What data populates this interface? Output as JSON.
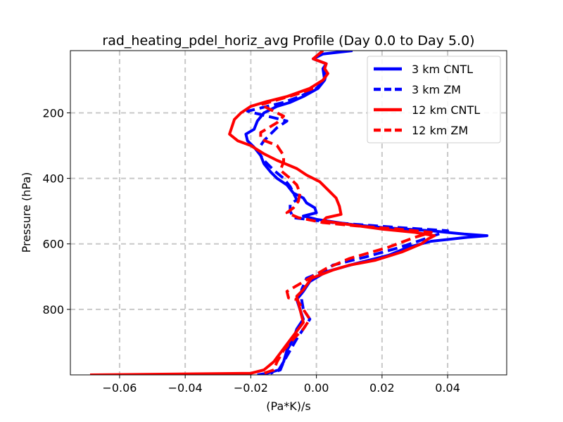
{
  "chart_data": {
    "type": "line",
    "title": "rad_heating_pdel_horiz_avg Profile (Day 0.0 to Day 5.0)",
    "xlabel": "(Pa*K)/s",
    "ylabel": "Pressure (hPa)",
    "xlim": [
      -0.075,
      0.058
    ],
    "ylim": [
      1000,
      10
    ],
    "y_inverted": true,
    "grid": true,
    "legend_position": "upper-right",
    "xticks": [
      -0.06,
      -0.04,
      -0.02,
      0.0,
      0.02,
      0.04
    ],
    "xtick_labels": [
      "−0.06",
      "−0.04",
      "−0.02",
      "0.00",
      "0.02",
      "0.04"
    ],
    "yticks": [
      200,
      400,
      600,
      800
    ],
    "ytick_labels": [
      "200",
      "400",
      "600",
      "800"
    ],
    "series": [
      {
        "name": "3 km CNTL",
        "color": "#0000ff",
        "style": "solid",
        "points": [
          [
            0.011,
            10
          ],
          [
            0.002,
            20
          ],
          [
            -0.001,
            35
          ],
          [
            0.003,
            50
          ],
          [
            0.002,
            65
          ],
          [
            0.003,
            80
          ],
          [
            0.0025,
            100
          ],
          [
            0.0005,
            125
          ],
          [
            -0.004,
            150
          ],
          [
            -0.008,
            168
          ],
          [
            -0.012,
            180
          ],
          [
            -0.016,
            200
          ],
          [
            -0.018,
            225
          ],
          [
            -0.019,
            250
          ],
          [
            -0.0215,
            265
          ],
          [
            -0.021,
            285
          ],
          [
            -0.019,
            305
          ],
          [
            -0.017,
            330
          ],
          [
            -0.016,
            355
          ],
          [
            -0.014,
            380
          ],
          [
            -0.012,
            400
          ],
          [
            -0.009,
            420
          ],
          [
            -0.007,
            445
          ],
          [
            -0.004,
            460
          ],
          [
            -0.003,
            475
          ],
          [
            -0.0005,
            490
          ],
          [
            0.0,
            505
          ],
          [
            -0.004,
            515
          ],
          [
            0.0,
            525
          ],
          [
            0.01,
            540
          ],
          [
            0.02,
            550
          ],
          [
            0.035,
            560
          ],
          [
            0.045,
            570
          ],
          [
            0.052,
            575
          ],
          [
            0.046,
            580
          ],
          [
            0.035,
            592
          ],
          [
            0.028,
            610
          ],
          [
            0.022,
            635
          ],
          [
            0.012,
            660
          ],
          [
            0.003,
            685
          ],
          [
            -0.002,
            715
          ],
          [
            -0.004,
            745
          ],
          [
            -0.006,
            770
          ],
          [
            -0.005,
            800
          ],
          [
            -0.004,
            830
          ],
          [
            -0.006,
            860
          ],
          [
            -0.007,
            890
          ],
          [
            -0.009,
            925
          ],
          [
            -0.01,
            960
          ],
          [
            -0.0115,
            985
          ],
          [
            -0.015,
            995
          ],
          [
            -0.018,
            1000
          ]
        ]
      },
      {
        "name": "3 km ZM",
        "color": "#0000ff",
        "style": "dashed",
        "points": [
          [
            0.002,
            65
          ],
          [
            0.0025,
            100
          ],
          [
            0.0,
            125
          ],
          [
            -0.005,
            150
          ],
          [
            -0.01,
            168
          ],
          [
            -0.021,
            195
          ],
          [
            -0.017,
            205
          ],
          [
            -0.009,
            225
          ],
          [
            -0.012,
            245
          ],
          [
            -0.016,
            285
          ],
          [
            -0.018,
            315
          ],
          [
            -0.016,
            345
          ],
          [
            -0.013,
            375
          ],
          [
            -0.01,
            400
          ],
          [
            -0.008,
            425
          ],
          [
            -0.007,
            445
          ],
          [
            -0.006,
            465
          ],
          [
            -0.008,
            480
          ],
          [
            -0.008,
            500
          ],
          [
            -0.007,
            520
          ],
          [
            0.005,
            535
          ],
          [
            0.025,
            550
          ],
          [
            0.04,
            560
          ],
          [
            0.033,
            585
          ],
          [
            0.025,
            612
          ],
          [
            0.015,
            640
          ],
          [
            0.005,
            665
          ],
          [
            0.003,
            680
          ],
          [
            -0.003,
            705
          ],
          [
            -0.0045,
            740
          ],
          [
            -0.0045,
            770
          ],
          [
            -0.004,
            800
          ],
          [
            -0.002,
            830
          ],
          [
            -0.004,
            860
          ],
          [
            -0.006,
            890
          ],
          [
            -0.008,
            925
          ],
          [
            -0.01,
            960
          ],
          [
            -0.011,
            985
          ],
          [
            -0.014,
            995
          ]
        ]
      },
      {
        "name": "12 km CNTL",
        "color": "#ff0000",
        "style": "solid",
        "points": [
          [
            0.002,
            10
          ],
          [
            -0.001,
            35
          ],
          [
            0.003,
            50
          ],
          [
            0.0025,
            65
          ],
          [
            0.0035,
            80
          ],
          [
            0.002,
            100
          ],
          [
            -0.002,
            125
          ],
          [
            -0.009,
            150
          ],
          [
            -0.015,
            165
          ],
          [
            -0.02,
            180
          ],
          [
            -0.023,
            200
          ],
          [
            -0.025,
            220
          ],
          [
            -0.0265,
            265
          ],
          [
            -0.024,
            285
          ],
          [
            -0.02,
            300
          ],
          [
            -0.016,
            325
          ],
          [
            -0.012,
            345
          ],
          [
            -0.006,
            370
          ],
          [
            -0.003,
            390
          ],
          [
            0.001,
            410
          ],
          [
            0.004,
            440
          ],
          [
            0.006,
            460
          ],
          [
            0.007,
            485
          ],
          [
            0.0075,
            510
          ],
          [
            0.003,
            520
          ],
          [
            0.002,
            530
          ],
          [
            0.02,
            555
          ],
          [
            0.03,
            565
          ],
          [
            0.036,
            575
          ],
          [
            0.034,
            585
          ],
          [
            0.032,
            600
          ],
          [
            0.026,
            625
          ],
          [
            0.018,
            650
          ],
          [
            0.01,
            665
          ],
          [
            0.005,
            680
          ],
          [
            -0.0015,
            705
          ],
          [
            -0.004,
            740
          ],
          [
            -0.006,
            760
          ],
          [
            -0.005,
            800
          ],
          [
            -0.004,
            840
          ],
          [
            -0.007,
            880
          ],
          [
            -0.01,
            920
          ],
          [
            -0.013,
            960
          ],
          [
            -0.016,
            985
          ],
          [
            -0.02,
            995
          ],
          [
            -0.069,
            1000
          ]
        ]
      },
      {
        "name": "12 km ZM",
        "color": "#ff0000",
        "style": "dashed",
        "points": [
          [
            -0.001,
            125
          ],
          [
            -0.005,
            140
          ],
          [
            -0.01,
            155
          ],
          [
            -0.017,
            175
          ],
          [
            -0.015,
            185
          ],
          [
            -0.01,
            210
          ],
          [
            -0.012,
            230
          ],
          [
            -0.017,
            260
          ],
          [
            -0.017,
            280
          ],
          [
            -0.012,
            300
          ],
          [
            -0.01,
            330
          ],
          [
            -0.01,
            350
          ],
          [
            -0.011,
            375
          ],
          [
            -0.008,
            400
          ],
          [
            -0.006,
            420
          ],
          [
            -0.005,
            445
          ],
          [
            -0.0055,
            470
          ],
          [
            -0.007,
            490
          ],
          [
            -0.009,
            505
          ],
          [
            -0.0055,
            520
          ],
          [
            0.002,
            535
          ],
          [
            0.012,
            545
          ],
          [
            0.025,
            555
          ],
          [
            0.035,
            565
          ],
          [
            0.03,
            580
          ],
          [
            0.022,
            610
          ],
          [
            0.01,
            645
          ],
          [
            0.003,
            675
          ],
          [
            -0.003,
            710
          ],
          [
            -0.009,
            745
          ],
          [
            -0.0085,
            765
          ],
          [
            -0.006,
            770
          ],
          [
            -0.004,
            800
          ],
          [
            -0.002,
            830
          ],
          [
            -0.004,
            860
          ],
          [
            -0.007,
            890
          ],
          [
            -0.01,
            925
          ],
          [
            -0.012,
            960
          ],
          [
            -0.013,
            985
          ],
          [
            -0.016,
            995
          ]
        ]
      }
    ]
  }
}
